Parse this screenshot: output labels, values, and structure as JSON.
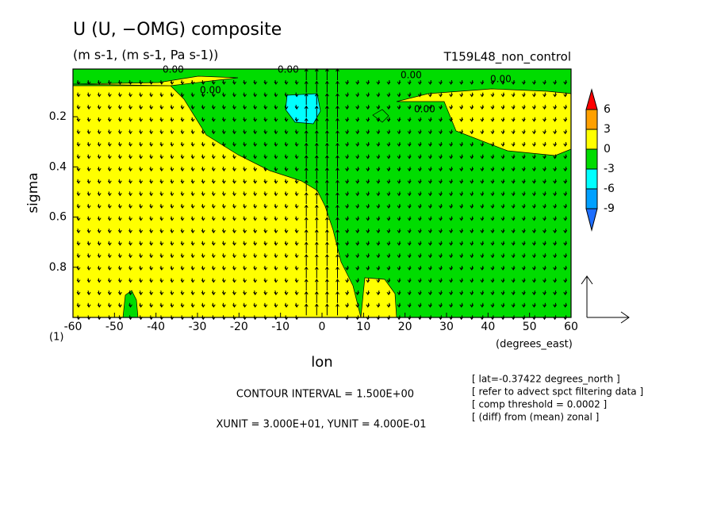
{
  "chart_data": {
    "type": "contour",
    "title": "U (U, −OMG) composite",
    "subtitle": "(m s-1, (m s-1, Pa s-1))",
    "run_label": "T159L48_non_control",
    "x_label": "lon",
    "x_unit": "(degrees_east)",
    "y_label": "sigma",
    "y_bottom_label": "(1)",
    "xlim": [
      -60,
      60
    ],
    "xticks": [
      -60,
      -50,
      -40,
      -30,
      -20,
      -10,
      0,
      10,
      20,
      30,
      40,
      50,
      60
    ],
    "ylim": [
      1,
      0.01
    ],
    "yticks": [
      0.2,
      0.4,
      0.6,
      0.8
    ],
    "contour_labels": [
      "0.00",
      "0.00",
      "0.00",
      "0.00",
      "0.00",
      "0.00"
    ],
    "colorbar": {
      "levels": [
        -9,
        -6,
        -3,
        0,
        3,
        6
      ],
      "colors": [
        "#1e6eff",
        "#00a0ff",
        "#00ffff",
        "#00dc00",
        "#ffff00",
        "#ffa000",
        "#ff0000"
      ]
    },
    "notes": [
      "CONTOUR INTERVAL = 1.500E+00",
      "XUNIT = 3.000E+01, YUNIT = 4.000E-01"
    ],
    "info": [
      "[ lat=-0.37422 degrees_north ]",
      "[ refer to advect spct filtering data ]",
      "[ comp threshold = 0.0002 ]",
      "[ (diff) from (mean) zonal ]"
    ]
  }
}
